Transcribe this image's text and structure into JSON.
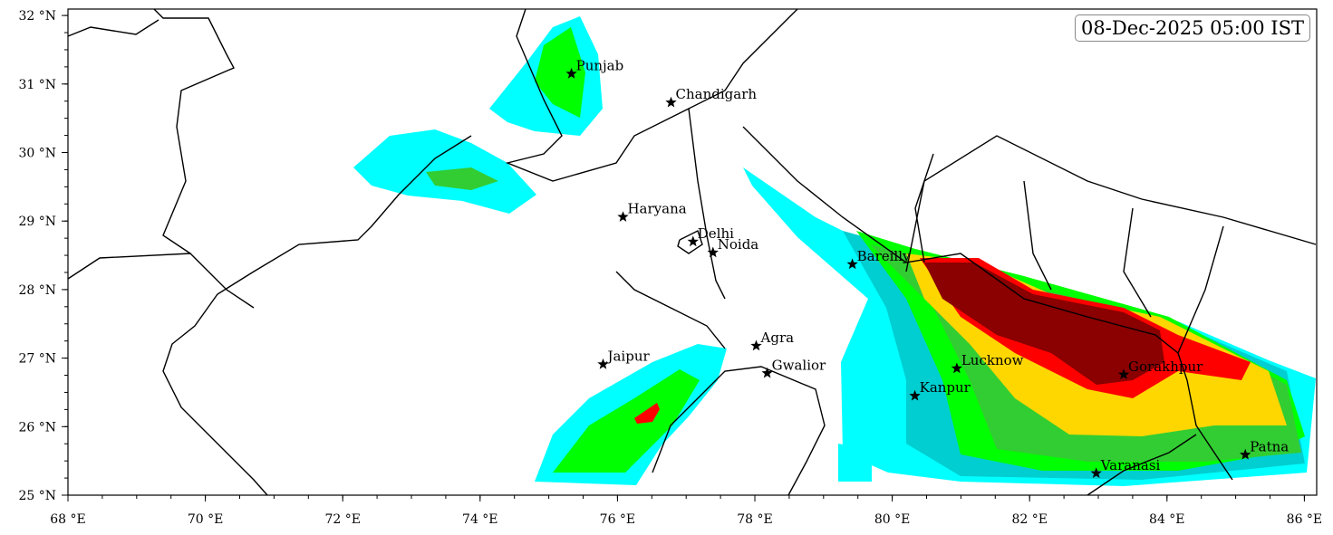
{
  "timestamp": "08-Dec-2025 05:00 IST",
  "map": {
    "extent_lon": [
      68,
      86.2
    ],
    "extent_lat": [
      25,
      32.1
    ],
    "x_ticks": [
      {
        "v": 68,
        "label": "68 °E"
      },
      {
        "v": 70,
        "label": "70 °E"
      },
      {
        "v": 72,
        "label": "72 °E"
      },
      {
        "v": 74,
        "label": "74 °E"
      },
      {
        "v": 76,
        "label": "76 °E"
      },
      {
        "v": 78,
        "label": "78 °E"
      },
      {
        "v": 80,
        "label": "80 °E"
      },
      {
        "v": 82,
        "label": "82 °E"
      },
      {
        "v": 84,
        "label": "84 °E"
      },
      {
        "v": 86,
        "label": "86 °E"
      }
    ],
    "y_ticks": [
      {
        "v": 25,
        "label": "25 °N"
      },
      {
        "v": 26,
        "label": "26 °N"
      },
      {
        "v": 27,
        "label": "27 °N"
      },
      {
        "v": 28,
        "label": "28 °N"
      },
      {
        "v": 29,
        "label": "29 °N"
      },
      {
        "v": 30,
        "label": "30 °N"
      },
      {
        "v": 31,
        "label": "31 °N"
      },
      {
        "v": 32,
        "label": "32 °N"
      }
    ],
    "fog_colors": [
      "#00ffff",
      "#00ced1",
      "#00ff00",
      "#32cd32",
      "#ffd700",
      "#ff0000",
      "#8b0000"
    ],
    "cities": [
      {
        "name": "Punjab",
        "lon": 75.33,
        "lat": 31.15
      },
      {
        "name": "Chandigarh",
        "lon": 76.78,
        "lat": 30.73
      },
      {
        "name": "Haryana",
        "lon": 76.08,
        "lat": 29.06
      },
      {
        "name": "Delhi",
        "lon": 77.1,
        "lat": 28.7
      },
      {
        "name": "Noida",
        "lon": 77.39,
        "lat": 28.54
      },
      {
        "name": "Bareilly",
        "lon": 79.42,
        "lat": 28.37
      },
      {
        "name": "Agra",
        "lon": 78.02,
        "lat": 27.18
      },
      {
        "name": "Jaipur",
        "lon": 75.79,
        "lat": 26.91
      },
      {
        "name": "Gwalior",
        "lon": 78.18,
        "lat": 26.78
      },
      {
        "name": "Lucknow",
        "lon": 80.94,
        "lat": 26.85
      },
      {
        "name": "Kanpur",
        "lon": 80.33,
        "lat": 26.45
      },
      {
        "name": "Gorakhpur",
        "lon": 83.37,
        "lat": 26.76
      },
      {
        "name": "Varanasi",
        "lon": 82.97,
        "lat": 25.32
      },
      {
        "name": "Patna",
        "lon": 85.14,
        "lat": 25.59
      }
    ]
  }
}
